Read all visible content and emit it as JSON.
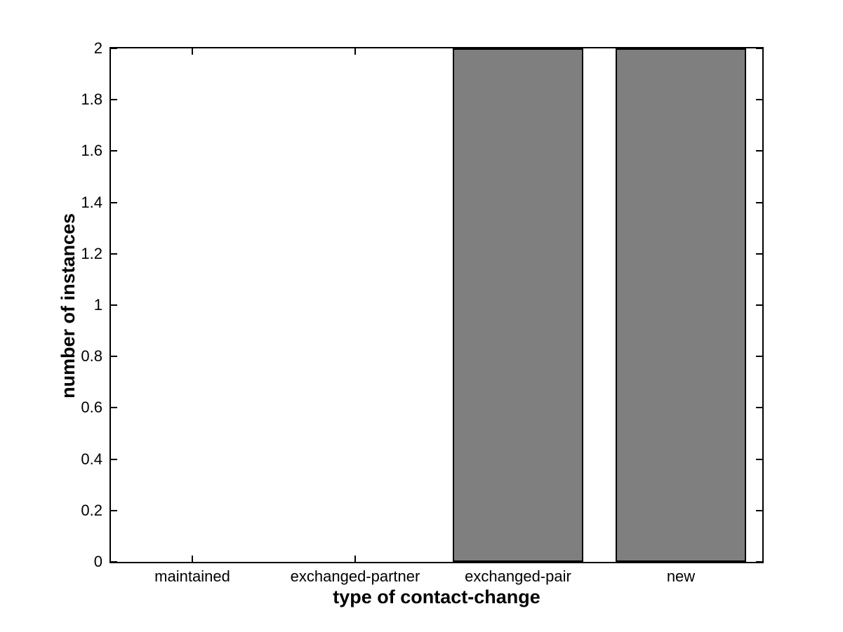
{
  "chart_data": {
    "type": "bar",
    "title": "",
    "xlabel": "type of contact-change",
    "ylabel": "number of instances",
    "categories": [
      "maintained",
      "exchanged-partner",
      "exchanged-pair",
      "new"
    ],
    "values": [
      0,
      0,
      2,
      2
    ],
    "ylim": [
      0,
      2
    ],
    "yticks": [
      0,
      0.2,
      0.4,
      0.6,
      0.8,
      1,
      1.2,
      1.4,
      1.6,
      1.8,
      2
    ],
    "ytick_labels": [
      "0",
      "0.2",
      "0.4",
      "0.6",
      "0.8",
      "1",
      "1.2",
      "1.4",
      "1.6",
      "1.8",
      "2"
    ],
    "bar_width_fraction": 0.8,
    "bar_fill_color": "#7f7f7f",
    "bar_edge_color": "#000000",
    "axis_color": "#000000",
    "background_color": "#ffffff",
    "grid": false,
    "legend": null,
    "tick_direction": "in"
  }
}
